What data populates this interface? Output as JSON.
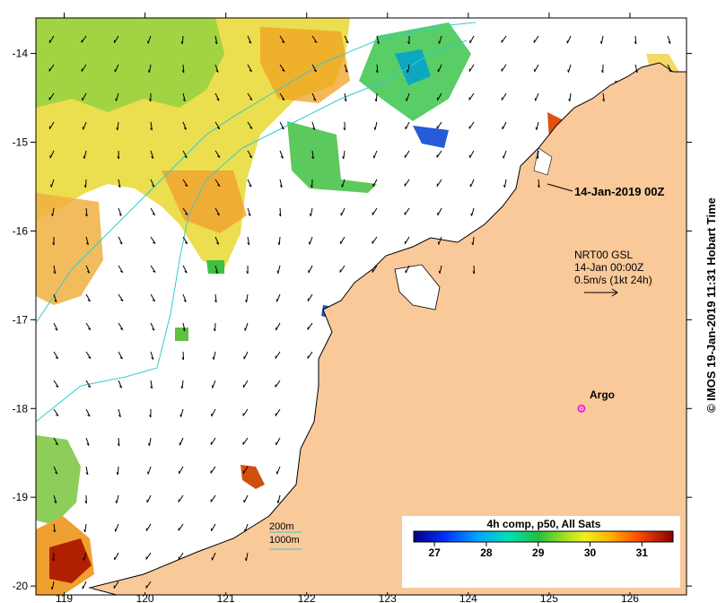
{
  "map": {
    "date_label": "14-Jan-2019 00Z",
    "current_legend": {
      "line1": "NRT00 GSL",
      "line2": "14-Jan 00:00Z",
      "line3": "0.5m/s (1kt 24h)"
    },
    "argo": {
      "label": "Argo",
      "lon": 125.4,
      "lat": -18.0,
      "color": "#ee22ee"
    },
    "bathymetry_legend": {
      "contour_200": "200m",
      "contour_1000": "1000m",
      "color": "#33cccc"
    },
    "colorbar": {
      "title": "4h comp, p50, All Sats",
      "ticks": [
        "27",
        "28",
        "29",
        "30",
        "31"
      ],
      "range": [
        26.6,
        31.6
      ]
    },
    "credit": "© IMOS 19-Jan-2019 11:31 Hobart Time",
    "axes": {
      "lon_ticks": [
        "119",
        "120",
        "121",
        "122",
        "123",
        "124",
        "125",
        "126"
      ],
      "lat_ticks": [
        "-14",
        "-15",
        "-16",
        "-17",
        "-18",
        "-19",
        "-20"
      ],
      "lon_range": [
        118.65,
        126.7
      ],
      "lat_range": [
        -20.1,
        -13.6
      ]
    },
    "colors": {
      "land": "#f9c99a",
      "ocean": "#ffffff",
      "coast": "#000000"
    }
  }
}
